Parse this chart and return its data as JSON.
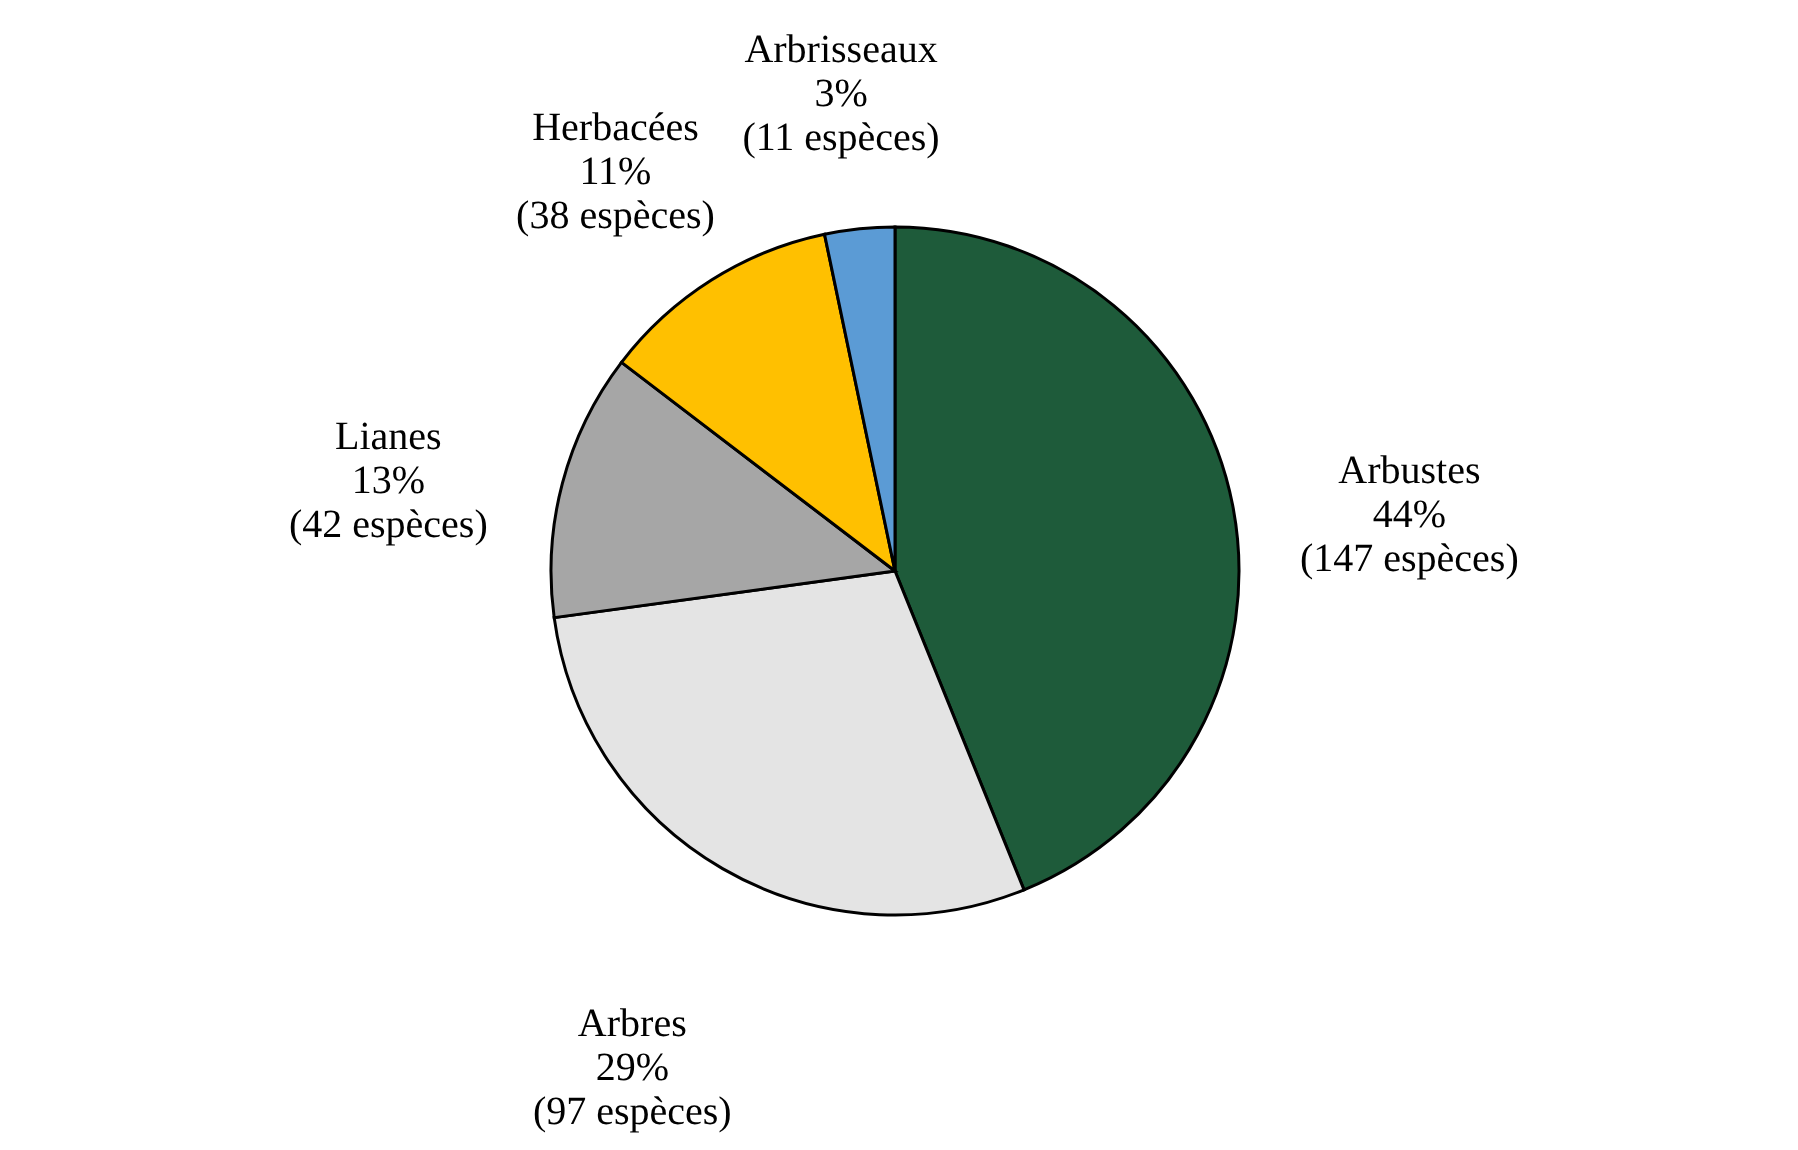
{
  "chart_data": {
    "type": "pie",
    "categories": [
      "Arbustes",
      "Arbres",
      "Lianes",
      "Herbacées",
      "Arbrisseaux"
    ],
    "values": [
      147,
      97,
      42,
      38,
      11
    ],
    "colors": [
      "#1e5b3a",
      "#e4e4e4",
      "#a6a6a6",
      "#ffc000",
      "#5b9bd5"
    ],
    "value_labels": [
      "44%\n(147 espèces)",
      "29%\n(97 espèces)",
      "13%\n(42 espèces)",
      "11%\n(38 espèces)",
      "3%\n(11 espèces)"
    ],
    "legend": false
  }
}
